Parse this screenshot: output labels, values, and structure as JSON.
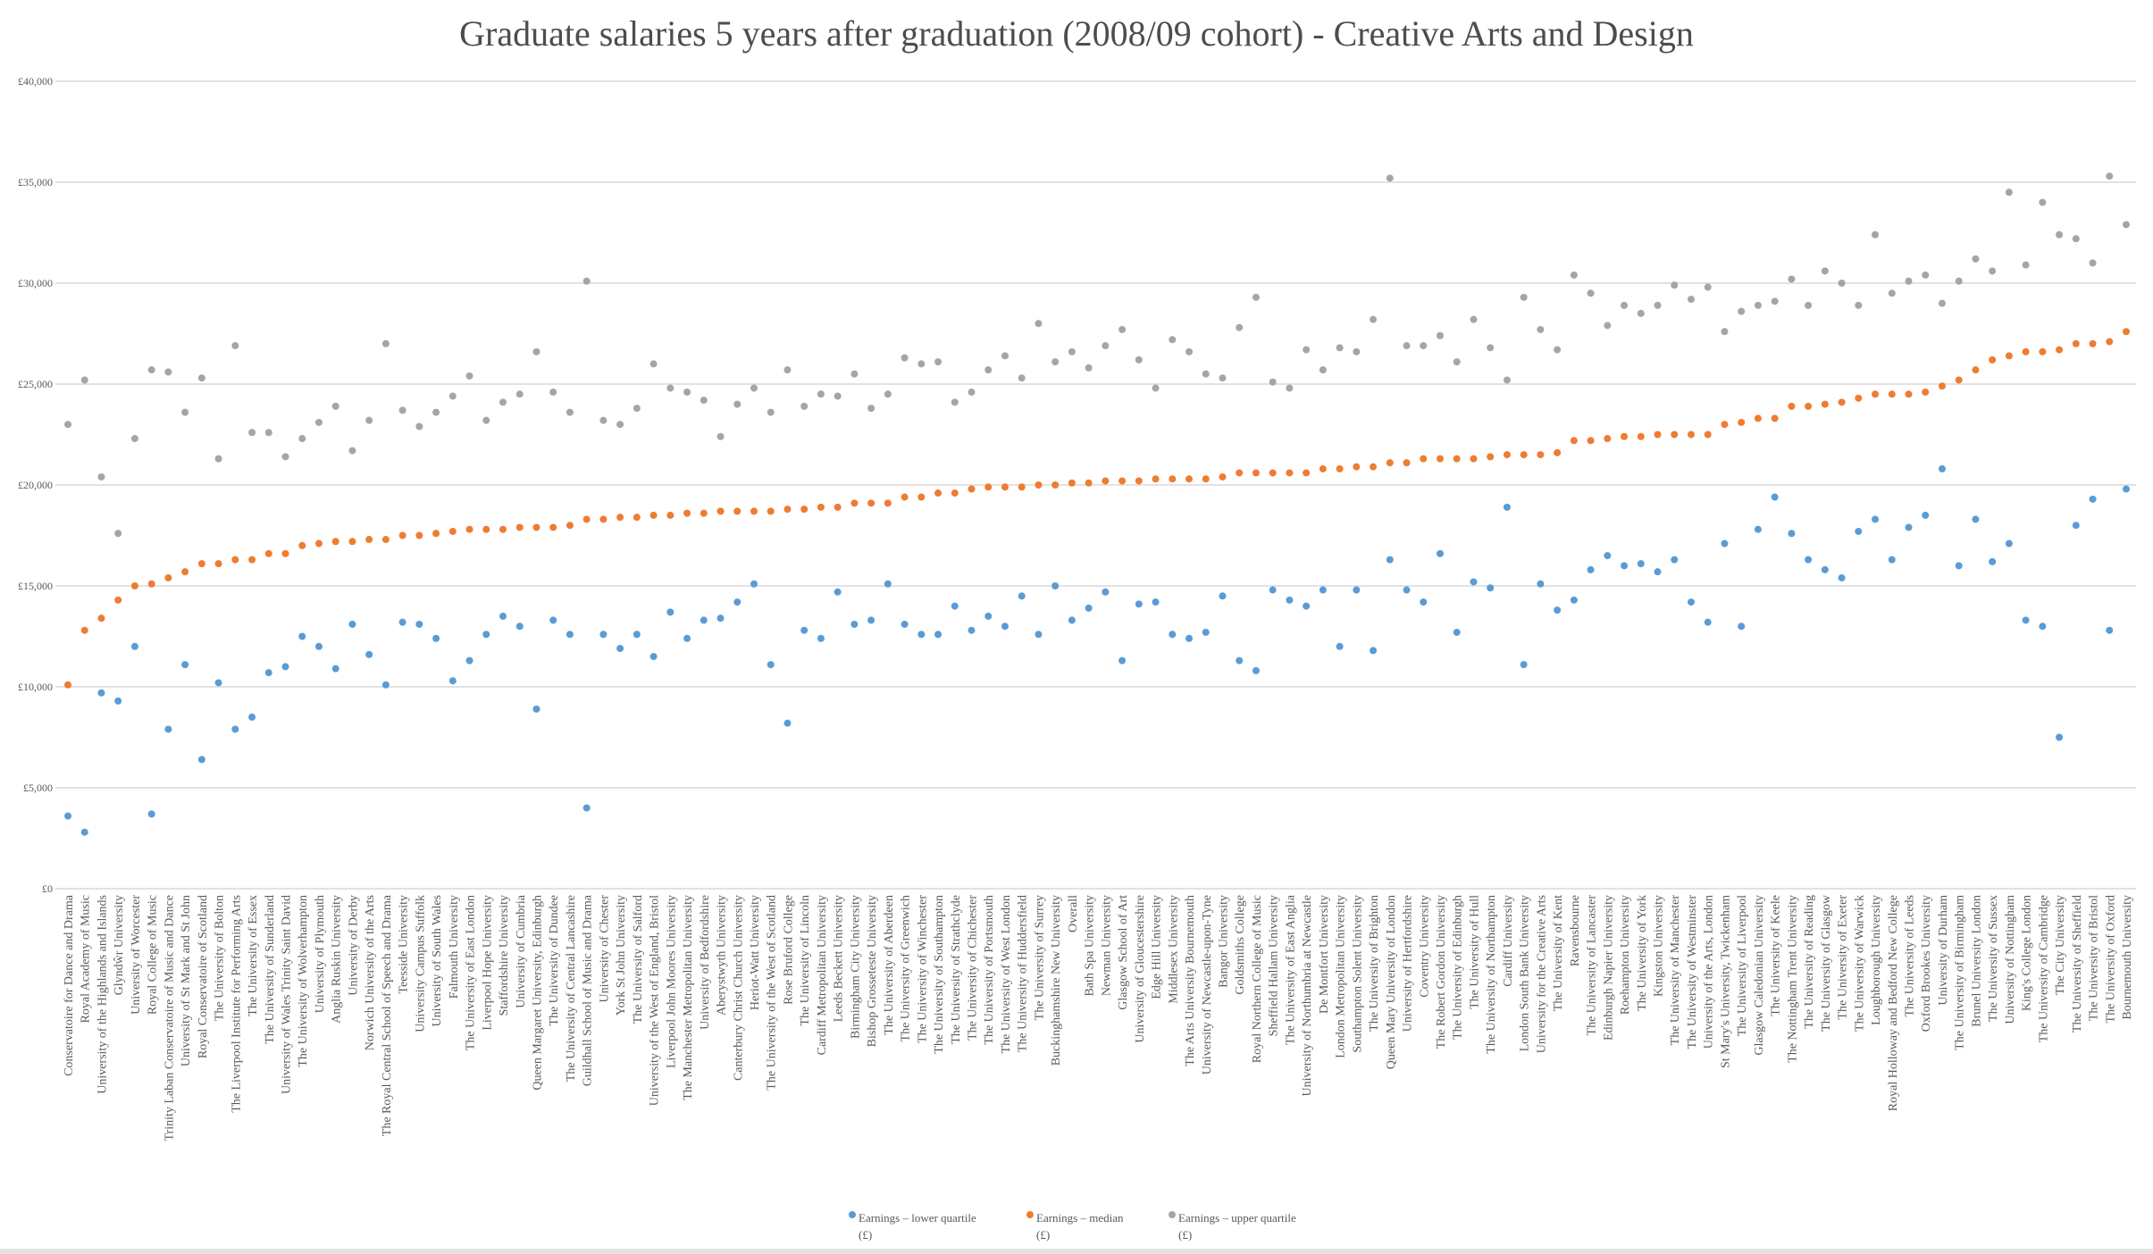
{
  "chart_data": {
    "type": "scatter",
    "title": "Graduate salaries 5 years after graduation (2008/09 cohort) - Creative Arts and Design",
    "xlabel": "",
    "ylabel": "",
    "ylim": [
      0,
      40000
    ],
    "yticks": [
      0,
      5000,
      10000,
      15000,
      20000,
      25000,
      30000,
      35000,
      40000
    ],
    "ytick_labels": [
      "£0",
      "£5,000",
      "£10,000",
      "£15,000",
      "£20,000",
      "£25,000",
      "£30,000",
      "£35,000",
      "£40,000"
    ],
    "grid": true,
    "legend_position": "bottom",
    "categories": [
      "Conservatoire for Dance and Drama",
      "Royal Academy of Music",
      "University of the Highlands and Islands",
      "Glyndŵr University",
      "University of Worcester",
      "Royal College of Music",
      "Trinity Laban Conservatoire of Music and Dance",
      "University of St Mark and St John",
      "Royal Conservatoire of Scotland",
      "The University of Bolton",
      "The Liverpool Institute for Performing Arts",
      "The University of Essex",
      "The University of Sunderland",
      "University of Wales Trinity Saint David",
      "The University of Wolverhampton",
      "University of Plymouth",
      "Anglia Ruskin University",
      "University of Derby",
      "Norwich University of the Arts",
      "The Royal Central School of Speech and Drama",
      "Teesside University",
      "University Campus Suffolk",
      "University of South Wales",
      "Falmouth University",
      "The University of East London",
      "Liverpool Hope University",
      "Staffordshire University",
      "University of Cumbria",
      "Queen Margaret University, Edinburgh",
      "The University of Dundee",
      "The University of Central Lancashire",
      "Guildhall School of Music and Drama",
      "University of Chester",
      "York St John University",
      "The University of Salford",
      "University of the West of England, Bristol",
      "Liverpool John Moores University",
      "The Manchester Metropolitan University",
      "University of Bedfordshire",
      "Aberystwyth University",
      "Canterbury Christ Church University",
      "Heriot-Watt University",
      "The University of the West of Scotland",
      "Rose Bruford College",
      "The University of Lincoln",
      "Cardiff Metropolitan University",
      "Leeds Beckett University",
      "Birmingham City University",
      "Bishop Grosseteste University",
      "The University of Aberdeen",
      "The University of Greenwich",
      "The University of Winchester",
      "The University of Southampton",
      "The University of Strathclyde",
      "The University of Chichester",
      "The University of Portsmouth",
      "The University of West London",
      "The University of Huddersfield",
      "The University of Surrey",
      "Buckinghamshire New University",
      "Overall",
      "Bath Spa University",
      "Newman University",
      "Glasgow School of Art",
      "University of Gloucestershire",
      "Edge Hill University",
      "Middlesex University",
      "The Arts University Bournemouth",
      "University of Newcastle-upon-Tyne",
      "Bangor University",
      "Goldsmiths College",
      "Royal Northern College of Music",
      "Sheffield Hallam University",
      "The University of East Anglia",
      "University of Northumbria at Newcastle",
      "De Montfort University",
      "London Metropolitan University",
      "Southampton Solent University",
      "The University of Brighton",
      "Queen Mary University of London",
      "University of Hertfordshire",
      "Coventry University",
      "The Robert Gordon University",
      "The University of Edinburgh",
      "The University of Hull",
      "The University of Northampton",
      "Cardiff University",
      "London South Bank University",
      "University for the Creative Arts",
      "The University of Kent",
      "Ravensbourne",
      "The University of Lancaster",
      "Edinburgh Napier University",
      "Roehampton University",
      "The University of York",
      "Kingston University",
      "The University of Manchester",
      "The University of Westminster",
      "University of the Arts, London",
      "St Mary's University, Twickenham",
      "The University of Liverpool",
      "Glasgow Caledonian University",
      "The University of Keele",
      "The Nottingham Trent University",
      "The University of Reading",
      "The University of Glasgow",
      "The University of Exeter",
      "The University of Warwick",
      "Loughborough University",
      "Royal Holloway and Bedford New College",
      "The University of Leeds",
      "Oxford Brookes University",
      "University of Durham",
      "The University of Birmingham",
      "Brunel University London",
      "The University of Sussex",
      "University of Nottingham",
      "King's College London",
      "The University of Cambridge",
      "The City University",
      "The University of Sheffield",
      "The University of Bristol",
      "The University of Oxford",
      "Bournemouth University"
    ],
    "series": [
      {
        "name": "Earnings – lower quartile",
        "unit": "(£)",
        "color": "#5b9bd5",
        "values": [
          3600,
          2800,
          9700,
          9300,
          12000,
          3700,
          7900,
          11100,
          6400,
          10200,
          7900,
          8500,
          10700,
          11000,
          12500,
          12000,
          10900,
          13100,
          11600,
          10100,
          13200,
          13100,
          12400,
          10300,
          11300,
          12600,
          13500,
          13000,
          8900,
          13300,
          12600,
          4000,
          12600,
          11900,
          12600,
          11500,
          13700,
          12400,
          13300,
          13400,
          14200,
          15100,
          11100,
          8200,
          12800,
          12400,
          14700,
          13100,
          13300,
          15100,
          13100,
          12600,
          12600,
          14000,
          12800,
          13500,
          13000,
          14500,
          12600,
          15000,
          13300,
          13900,
          14700,
          11300,
          14100,
          14200,
          12600,
          12400,
          12700,
          14500,
          11300,
          10800,
          14800,
          14300,
          14000,
          14800,
          12000,
          14800,
          11800,
          16300,
          14800,
          14200,
          16600,
          12700,
          15200,
          14900,
          18900,
          11100,
          15100,
          13800,
          14300,
          15800,
          16500,
          16000,
          16100,
          15700,
          16300,
          14200,
          13200,
          17100,
          13000,
          17800,
          19400,
          17600,
          16300,
          15800,
          15400,
          17700,
          18300,
          16300,
          17900,
          18500,
          20800,
          16000,
          18300,
          16200,
          17100,
          13300,
          13000,
          7500,
          18000,
          19300,
          12800,
          19800
        ]
      },
      {
        "name": "Earnings – median",
        "unit": "(£)",
        "color": "#ed7d31",
        "values": [
          10100,
          12800,
          13400,
          14300,
          15000,
          15100,
          15400,
          15700,
          16100,
          16100,
          16300,
          16300,
          16600,
          16600,
          17000,
          17100,
          17200,
          17200,
          17300,
          17300,
          17500,
          17500,
          17600,
          17700,
          17800,
          17800,
          17800,
          17900,
          17900,
          17900,
          18000,
          18300,
          18300,
          18400,
          18400,
          18500,
          18500,
          18600,
          18600,
          18700,
          18700,
          18700,
          18700,
          18800,
          18800,
          18900,
          18900,
          19100,
          19100,
          19100,
          19400,
          19400,
          19600,
          19600,
          19800,
          19900,
          19900,
          19900,
          20000,
          20000,
          20100,
          20100,
          20200,
          20200,
          20200,
          20300,
          20300,
          20300,
          20300,
          20400,
          20600,
          20600,
          20600,
          20600,
          20600,
          20800,
          20800,
          20900,
          20900,
          21100,
          21100,
          21300,
          21300,
          21300,
          21300,
          21400,
          21500,
          21500,
          21500,
          21600,
          22200,
          22200,
          22300,
          22400,
          22400,
          22500,
          22500,
          22500,
          22500,
          23000,
          23100,
          23300,
          23300,
          23900,
          23900,
          24000,
          24100,
          24300,
          24500,
          24500,
          24500,
          24600,
          24900,
          25200,
          25700,
          26200,
          26400,
          26600,
          26600,
          26700,
          27000,
          27000,
          27100,
          27600
        ]
      },
      {
        "name": "Earnings – upper quartile",
        "unit": "(£)",
        "color": "#a5a5a5",
        "values": [
          23000,
          25200,
          20400,
          17600,
          22300,
          25700,
          25600,
          23600,
          25300,
          21300,
          26900,
          22600,
          22600,
          21400,
          22300,
          23100,
          23900,
          21700,
          23200,
          27000,
          23700,
          22900,
          23600,
          24400,
          25400,
          23200,
          24100,
          24500,
          26600,
          24600,
          23600,
          30100,
          23200,
          23000,
          23800,
          26000,
          24800,
          24600,
          24200,
          22400,
          24000,
          24800,
          23600,
          25700,
          23900,
          24500,
          24400,
          25500,
          23800,
          24500,
          26300,
          26000,
          26100,
          24100,
          24600,
          25700,
          26400,
          25300,
          28000,
          26100,
          26600,
          25800,
          26900,
          27700,
          26200,
          24800,
          27200,
          26600,
          25500,
          25300,
          27800,
          29300,
          25100,
          24800,
          26700,
          25700,
          26800,
          26600,
          28200,
          35200,
          26900,
          26900,
          27400,
          26100,
          28200,
          26800,
          25200,
          29300,
          27700,
          26700,
          30400,
          29500,
          27900,
          28900,
          28500,
          28900,
          29900,
          29200,
          29800,
          27600,
          28600,
          28900,
          29100,
          30200,
          28900,
          30600,
          30000,
          28900,
          32400,
          29500,
          30100,
          30400,
          29000,
          30100,
          31200,
          30600,
          34500,
          30900,
          34000,
          32400,
          32200,
          31000,
          35300,
          32900
        ]
      }
    ]
  }
}
